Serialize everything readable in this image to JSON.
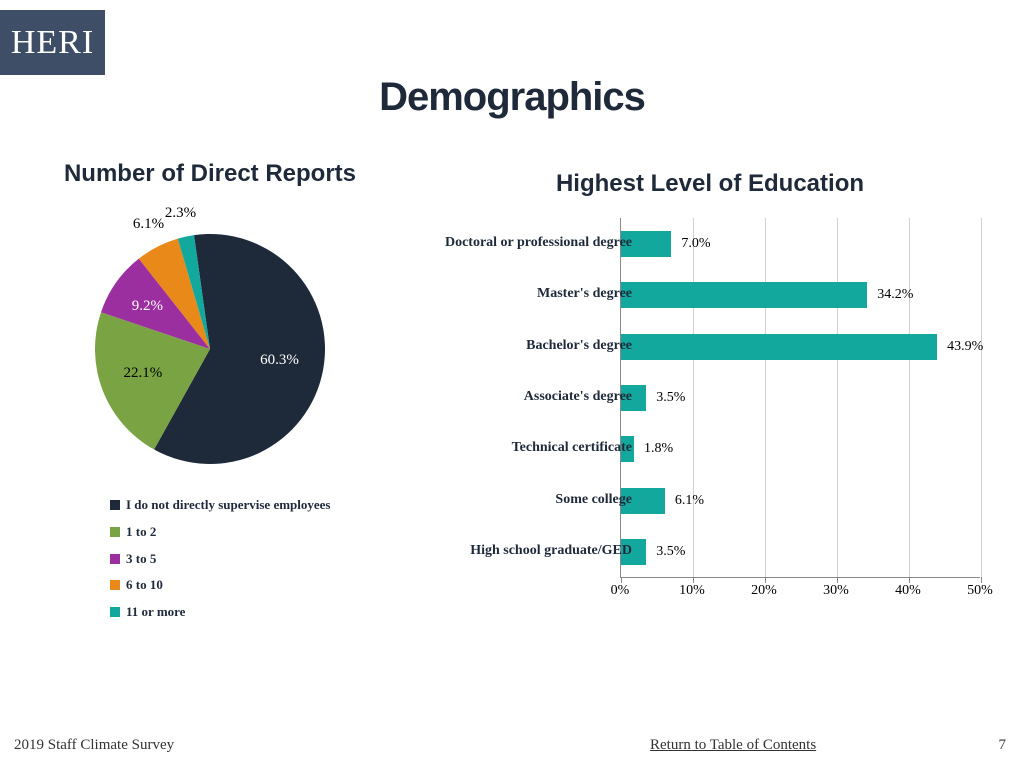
{
  "logo_text": "HERI",
  "page_title": "Demographics",
  "pie_chart": {
    "title": "Number of Direct Reports",
    "slices": [
      {
        "label": "I do not directly supervise employees",
        "value": 60.3,
        "color": "#1e2a3a",
        "value_text": "60.3%",
        "text_color": "#ffffff"
      },
      {
        "label": "1 to 2",
        "value": 22.1,
        "color": "#7aa343",
        "value_text": "22.1%",
        "text_color": "#000000"
      },
      {
        "label": "3 to 5",
        "value": 9.2,
        "color": "#9c2fa0",
        "value_text": "9.2%",
        "text_color": "#ffffff"
      },
      {
        "label": "6 to 10",
        "value": 6.1,
        "color": "#e8891a",
        "value_text": "6.1%",
        "text_color": "#000000"
      },
      {
        "label": "11 or more",
        "value": 2.3,
        "color": "#13a89e",
        "value_text": "2.3%",
        "text_color": "#000000"
      }
    ],
    "start_angle_deg": -8
  },
  "bar_chart": {
    "title": "Highest Level of Education",
    "bar_color": "#13a89e",
    "x_max": 50,
    "x_ticks": [
      "0%",
      "10%",
      "20%",
      "30%",
      "40%",
      "50%"
    ],
    "rows": [
      {
        "label": "Doctoral or professional degree",
        "value": 7.0,
        "value_text": "7.0%"
      },
      {
        "label": "Master's degree",
        "value": 34.2,
        "value_text": "34.2%"
      },
      {
        "label": "Bachelor's degree",
        "value": 43.9,
        "value_text": "43.9%"
      },
      {
        "label": "Associate's degree",
        "value": 3.5,
        "value_text": "3.5%"
      },
      {
        "label": "Technical certificate",
        "value": 1.8,
        "value_text": "1.8%"
      },
      {
        "label": "Some college",
        "value": 6.1,
        "value_text": "6.1%"
      },
      {
        "label": "High school graduate/GED",
        "value": 3.5,
        "value_text": "3.5%"
      }
    ]
  },
  "footer": {
    "left": "2019 Staff Climate Survey",
    "link": "Return to Table of Contents",
    "page_number": "7"
  }
}
